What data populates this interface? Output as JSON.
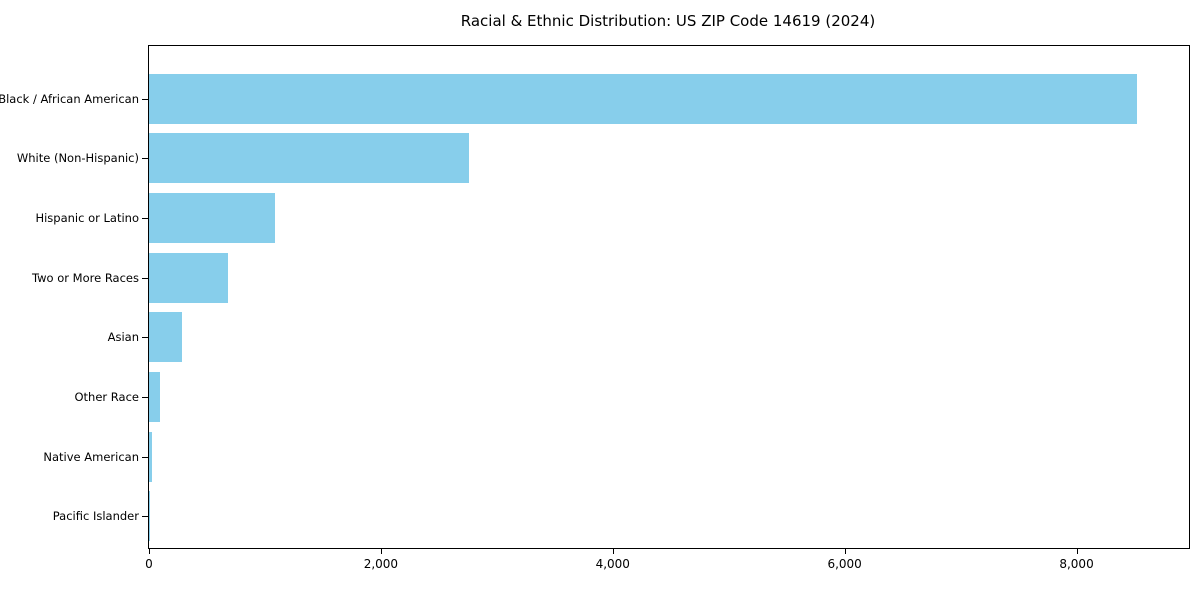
{
  "figure": {
    "background": "#ffffff"
  },
  "chart_data": {
    "type": "bar",
    "orientation": "horizontal",
    "title": "Racial & Ethnic Distribution: US ZIP Code 14619 (2024)",
    "categories": [
      "Black / African American",
      "White (Non-Hispanic)",
      "Hispanic or Latino",
      "Two or More Races",
      "Asian",
      "Other Race",
      "Native American",
      "Pacific Islander"
    ],
    "values": [
      8520,
      2760,
      1090,
      680,
      285,
      95,
      25,
      8
    ],
    "xlabel": "",
    "ylabel": "",
    "xlim": [
      0,
      8970
    ],
    "x_ticks": [
      0,
      2000,
      4000,
      6000,
      8000
    ],
    "x_tick_labels": [
      "0",
      "2,000",
      "4,000",
      "6,000",
      "8,000"
    ],
    "bar_color": "#87CEEB",
    "axis_color": "#000000",
    "grid": false,
    "legend_position": "none"
  }
}
